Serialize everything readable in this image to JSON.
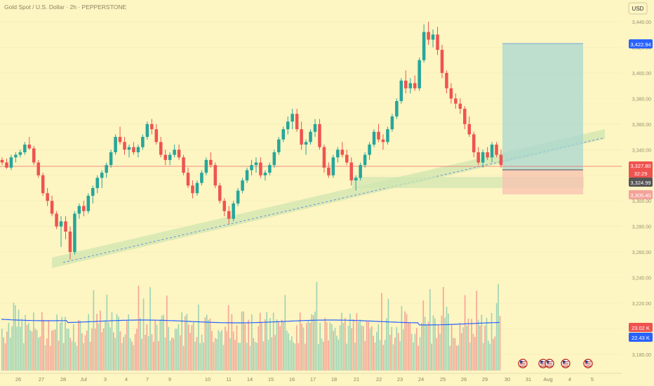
{
  "header": {
    "title": "Gold Spot / U.S. Dollar · 2h · PEPPERSTONE",
    "currency_button": "USD"
  },
  "colors": {
    "background": "#fdf5c2",
    "up": "#26a69a",
    "down": "#ef5350",
    "current_price_line": "#f06a6a",
    "volume_ma": "#2962ff",
    "channel_fill": "#cfe6b0",
    "target_zone": "#a8d5d1",
    "stop_zone": "#f7c4b2"
  },
  "price_scale": {
    "ticks": [
      "3,440.00",
      "3,420.00",
      "3,400.00",
      "3,380.00",
      "3,360.00",
      "3,340.00",
      "3,320.00",
      "3,300.00",
      "3,280.00",
      "3,260.00",
      "3,240.00",
      "3,220.00",
      "3,200.00",
      "3,180.00"
    ],
    "tick_values": [
      3440,
      3420,
      3400,
      3380,
      3360,
      3340,
      3320,
      3300,
      3280,
      3260,
      3240,
      3220,
      3200,
      3180
    ]
  },
  "badges": {
    "target": "3,422.94",
    "current": "3,327.80",
    "countdown": "32:29",
    "entry": "3,324.99",
    "stop": "3,305.40",
    "volume": "23.02 K",
    "volume_ma": "22.43 K"
  },
  "time_scale": {
    "labels": [
      "26",
      "27",
      "28",
      "Jul",
      "3",
      "4",
      "7",
      "9",
      "10",
      "11",
      "14",
      "15",
      "16",
      "17",
      "18",
      "21",
      "22",
      "23",
      "24",
      "25",
      "26",
      "29",
      "30",
      "31",
      "Aug",
      "4",
      "5"
    ]
  },
  "chart_data": {
    "type": "candlestick",
    "symbol": "Gold Spot / U.S. Dollar",
    "interval": "2h",
    "source": "PEPPERSTONE",
    "ylim": [
      3170,
      3450
    ],
    "candles": [
      [
        3332,
        3334,
        3328,
        3330
      ],
      [
        3330,
        3333,
        3325,
        3326
      ],
      [
        3326,
        3336,
        3324,
        3334
      ],
      [
        3334,
        3338,
        3330,
        3336
      ],
      [
        3336,
        3340,
        3334,
        3338
      ],
      [
        3338,
        3346,
        3336,
        3344
      ],
      [
        3344,
        3350,
        3340,
        3341
      ],
      [
        3341,
        3343,
        3328,
        3330
      ],
      [
        3330,
        3332,
        3318,
        3320
      ],
      [
        3320,
        3322,
        3304,
        3306
      ],
      [
        3306,
        3310,
        3296,
        3300
      ],
      [
        3300,
        3304,
        3288,
        3290
      ],
      [
        3290,
        3292,
        3278,
        3280
      ],
      [
        3280,
        3288,
        3264,
        3284
      ],
      [
        3284,
        3288,
        3270,
        3276
      ],
      [
        3276,
        3280,
        3254,
        3260
      ],
      [
        3260,
        3292,
        3258,
        3290
      ],
      [
        3290,
        3298,
        3286,
        3296
      ],
      [
        3296,
        3300,
        3288,
        3292
      ],
      [
        3292,
        3306,
        3290,
        3304
      ],
      [
        3304,
        3312,
        3298,
        3310
      ],
      [
        3310,
        3320,
        3306,
        3318
      ],
      [
        3318,
        3324,
        3310,
        3322
      ],
      [
        3322,
        3330,
        3318,
        3328
      ],
      [
        3328,
        3340,
        3326,
        3338
      ],
      [
        3338,
        3352,
        3336,
        3350
      ],
      [
        3350,
        3358,
        3344,
        3346
      ],
      [
        3346,
        3350,
        3336,
        3340
      ],
      [
        3340,
        3344,
        3334,
        3342
      ],
      [
        3342,
        3346,
        3336,
        3338
      ],
      [
        3338,
        3344,
        3334,
        3342
      ],
      [
        3342,
        3352,
        3340,
        3350
      ],
      [
        3350,
        3362,
        3348,
        3360
      ],
      [
        3360,
        3364,
        3352,
        3356
      ],
      [
        3356,
        3360,
        3344,
        3346
      ],
      [
        3346,
        3350,
        3334,
        3336
      ],
      [
        3336,
        3340,
        3328,
        3332
      ],
      [
        3332,
        3338,
        3328,
        3336
      ],
      [
        3336,
        3344,
        3334,
        3340
      ],
      [
        3340,
        3344,
        3332,
        3334
      ],
      [
        3334,
        3336,
        3320,
        3322
      ],
      [
        3322,
        3326,
        3310,
        3312
      ],
      [
        3312,
        3316,
        3302,
        3306
      ],
      [
        3306,
        3316,
        3304,
        3314
      ],
      [
        3314,
        3324,
        3312,
        3322
      ],
      [
        3322,
        3334,
        3320,
        3332
      ],
      [
        3332,
        3338,
        3326,
        3328
      ],
      [
        3328,
        3330,
        3310,
        3312
      ],
      [
        3312,
        3314,
        3298,
        3300
      ],
      [
        3300,
        3302,
        3288,
        3292
      ],
      [
        3292,
        3296,
        3282,
        3286
      ],
      [
        3286,
        3300,
        3284,
        3298
      ],
      [
        3298,
        3310,
        3296,
        3308
      ],
      [
        3308,
        3318,
        3306,
        3316
      ],
      [
        3316,
        3326,
        3314,
        3324
      ],
      [
        3324,
        3332,
        3320,
        3328
      ],
      [
        3328,
        3334,
        3322,
        3330
      ],
      [
        3330,
        3334,
        3318,
        3320
      ],
      [
        3320,
        3324,
        3316,
        3322
      ],
      [
        3322,
        3330,
        3320,
        3328
      ],
      [
        3328,
        3340,
        3326,
        3338
      ],
      [
        3338,
        3350,
        3336,
        3348
      ],
      [
        3348,
        3358,
        3346,
        3356
      ],
      [
        3356,
        3366,
        3352,
        3362
      ],
      [
        3362,
        3372,
        3356,
        3368
      ],
      [
        3368,
        3372,
        3354,
        3356
      ],
      [
        3356,
        3362,
        3340,
        3344
      ],
      [
        3344,
        3348,
        3336,
        3346
      ],
      [
        3346,
        3356,
        3344,
        3354
      ],
      [
        3354,
        3364,
        3350,
        3360
      ],
      [
        3360,
        3364,
        3340,
        3342
      ],
      [
        3342,
        3344,
        3322,
        3326
      ],
      [
        3326,
        3330,
        3318,
        3320
      ],
      [
        3320,
        3336,
        3318,
        3334
      ],
      [
        3334,
        3342,
        3330,
        3340
      ],
      [
        3340,
        3346,
        3334,
        3336
      ],
      [
        3336,
        3340,
        3328,
        3330
      ],
      [
        3330,
        3334,
        3312,
        3316
      ],
      [
        3316,
        3320,
        3308,
        3318
      ],
      [
        3318,
        3330,
        3316,
        3328
      ],
      [
        3328,
        3338,
        3326,
        3336
      ],
      [
        3336,
        3346,
        3332,
        3344
      ],
      [
        3344,
        3356,
        3342,
        3354
      ],
      [
        3354,
        3360,
        3346,
        3348
      ],
      [
        3348,
        3352,
        3340,
        3346
      ],
      [
        3346,
        3358,
        3344,
        3356
      ],
      [
        3356,
        3368,
        3354,
        3366
      ],
      [
        3366,
        3380,
        3364,
        3378
      ],
      [
        3378,
        3396,
        3376,
        3394
      ],
      [
        3394,
        3402,
        3384,
        3388
      ],
      [
        3388,
        3396,
        3384,
        3392
      ],
      [
        3392,
        3398,
        3386,
        3388
      ],
      [
        3388,
        3412,
        3386,
        3410
      ],
      [
        3410,
        3438,
        3408,
        3432
      ],
      [
        3432,
        3440,
        3422,
        3426
      ],
      [
        3426,
        3434,
        3420,
        3430
      ],
      [
        3430,
        3436,
        3414,
        3418
      ],
      [
        3418,
        3422,
        3396,
        3400
      ],
      [
        3400,
        3402,
        3384,
        3388
      ],
      [
        3388,
        3392,
        3376,
        3380
      ],
      [
        3380,
        3384,
        3372,
        3376
      ],
      [
        3376,
        3380,
        3368,
        3372
      ],
      [
        3372,
        3374,
        3356,
        3360
      ],
      [
        3360,
        3366,
        3350,
        3352
      ],
      [
        3352,
        3354,
        3334,
        3338
      ],
      [
        3338,
        3342,
        3328,
        3330
      ],
      [
        3330,
        3340,
        3326,
        3338
      ],
      [
        3338,
        3342,
        3332,
        3334
      ],
      [
        3334,
        3346,
        3330,
        3344
      ],
      [
        3344,
        3346,
        3334,
        3336
      ],
      [
        3336,
        3340,
        3326,
        3328
      ]
    ],
    "volume_ma_label": "22.43 K",
    "current_volume_label": "23.02 K",
    "levels": {
      "target": 3422.94,
      "current": 3327.8,
      "entry": 3324.99,
      "stop": 3305.4
    }
  }
}
